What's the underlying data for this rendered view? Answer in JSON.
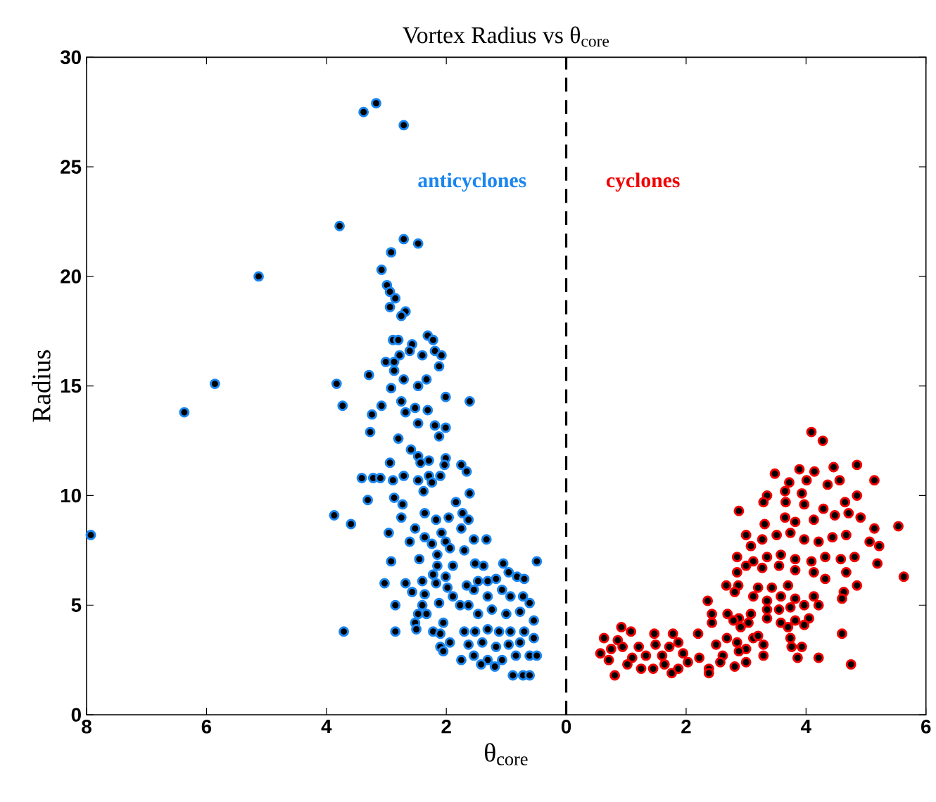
{
  "chart_data": {
    "type": "scatter",
    "title": "Vortex Radius vs θ$_{core}$",
    "xlabel": "θ$_{core}$",
    "ylabel": "Radius",
    "xlim": [
      -8,
      6
    ],
    "ylim": [
      0,
      30
    ],
    "xticks": [
      {
        "value": -8,
        "label": "8"
      },
      {
        "value": -6,
        "label": "6"
      },
      {
        "value": -4,
        "label": "4"
      },
      {
        "value": -2,
        "label": "2"
      },
      0,
      2,
      4,
      6
    ],
    "yticks": [
      0,
      5,
      10,
      15,
      20,
      25,
      30
    ],
    "marker": "circle",
    "grid": false,
    "ref_lines": [
      {
        "axis": "x",
        "value": 0,
        "color": "#000000",
        "line_style": "dashed"
      }
    ],
    "series": [
      {
        "name": "anticyclones",
        "color": "#1a86f0",
        "x": [
          -7.93,
          -6.37,
          -5.86,
          -5.13,
          -3.78,
          -3.38,
          -3.17,
          -2.71,
          -2.71,
          -2.47,
          -2.92,
          -3.08,
          -2.99,
          -2.94,
          -2.85,
          -2.94,
          -2.68,
          -2.75,
          -2.89,
          -2.8,
          -2.31,
          -2.22,
          -2.57,
          -2.61,
          -2.78,
          -2.19,
          -2.08,
          -2.4,
          -3.01,
          -2.87,
          -2.87,
          -2.12,
          -3.83,
          -3.29,
          -2.71,
          -2.33,
          -2.47,
          -3.73,
          -3.24,
          -3.08,
          -3.27,
          -2.92,
          -2.75,
          -2.68,
          -2.52,
          -2.31,
          -2.47,
          -2.01,
          -1.61,
          -2.19,
          -2.01,
          -2.12,
          -2.8,
          -2.59,
          -2.47,
          -2.01,
          -2.29,
          -2.03,
          -2.43,
          -2.94,
          -1.75,
          -1.66,
          -3.41,
          -3.22,
          -3.1,
          -2.89,
          -2.71,
          -2.47,
          -2.29,
          -2.1,
          -2.24,
          -2.38,
          -1.61,
          -3.31,
          -2.87,
          -2.73,
          -3.87,
          -3.59,
          -2.75,
          -2.36,
          -2.17,
          -1.96,
          -1.84,
          -1.73,
          -1.63,
          -2.96,
          -2.52,
          -2.36,
          -2.08,
          -1.75,
          -2.61,
          -2.24,
          -2.01,
          -1.54,
          -1.33,
          -2.15,
          -1.94,
          -1.7,
          -2.92,
          -2.45,
          -2.15,
          -1.89,
          -1.52,
          -1.38,
          -1.05,
          -0.49,
          -3.03,
          -2.68,
          -2.4,
          -2.22,
          -2.01,
          -2.57,
          -2.36,
          -2.17,
          -1.98,
          -1.66,
          -1.54,
          -2.85,
          -2.4,
          -2.12,
          -1.89,
          -1.77,
          -2.47,
          -2.33,
          -2.52,
          -2.5,
          -2.05,
          -3.71,
          -2.85,
          -2.22,
          -2.1,
          -2.1,
          -2.05,
          -1.94,
          -1.47,
          -1.31,
          -1.17,
          -0.96,
          -0.82,
          -0.7,
          -1.31,
          -1.07,
          -0.93,
          -0.72,
          -0.61,
          -1.63,
          -1.47,
          -1.24,
          -1.0,
          -0.77,
          -0.54,
          -1.7,
          -1.52,
          -1.31,
          -1.12,
          -0.93,
          -0.7,
          -1.63,
          -1.4,
          -1.17,
          -0.96,
          -0.77,
          -0.54,
          -1.75,
          -1.54,
          -1.31,
          -1.07,
          -0.84,
          -0.61,
          -0.49,
          -1.42,
          -1.19,
          -0.89,
          -0.72,
          -0.61
        ],
        "values": [
          8.2,
          13.8,
          15.1,
          20.0,
          22.3,
          27.5,
          27.9,
          26.9,
          21.7,
          21.5,
          21.1,
          20.3,
          19.6,
          19.3,
          19.0,
          18.6,
          18.4,
          18.2,
          17.1,
          17.1,
          17.3,
          17.1,
          16.9,
          16.6,
          16.4,
          16.6,
          16.4,
          16.4,
          16.1,
          16.1,
          15.7,
          15.9,
          15.1,
          15.5,
          15.3,
          15.3,
          15.0,
          14.1,
          13.7,
          14.1,
          12.9,
          14.9,
          14.3,
          13.8,
          14.0,
          13.9,
          13.3,
          14.5,
          14.3,
          13.2,
          13.1,
          12.7,
          12.6,
          12.1,
          11.8,
          11.7,
          11.6,
          11.4,
          11.5,
          11.5,
          11.4,
          11.1,
          10.8,
          10.8,
          10.8,
          10.7,
          10.9,
          10.7,
          10.9,
          10.9,
          10.6,
          10.2,
          10.1,
          9.8,
          9.9,
          9.6,
          9.1,
          8.7,
          9.0,
          9.2,
          8.9,
          9.0,
          9.7,
          9.2,
          8.9,
          8.3,
          8.5,
          8.1,
          8.3,
          8.5,
          7.9,
          7.8,
          7.9,
          8.0,
          8.0,
          7.3,
          7.6,
          7.5,
          7.0,
          7.1,
          6.8,
          6.8,
          6.9,
          6.8,
          6.9,
          7.0,
          6.0,
          6.0,
          6.1,
          6.4,
          6.3,
          5.6,
          5.5,
          6.0,
          5.8,
          5.9,
          5.7,
          5.0,
          5.0,
          5.1,
          5.4,
          5.0,
          4.6,
          4.6,
          4.2,
          3.9,
          4.2,
          3.8,
          3.8,
          3.8,
          3.7,
          3.1,
          2.9,
          3.3,
          6.1,
          6.1,
          6.2,
          6.5,
          6.3,
          6.2,
          5.4,
          5.7,
          5.4,
          5.4,
          5.1,
          5.0,
          4.6,
          4.8,
          4.6,
          4.7,
          4.3,
          3.8,
          3.8,
          3.9,
          3.8,
          3.8,
          3.8,
          3.2,
          3.3,
          3.1,
          3.2,
          3.3,
          3.5,
          2.5,
          2.7,
          2.5,
          2.5,
          2.7,
          2.7,
          2.7,
          2.3,
          2.2,
          1.8,
          1.8,
          1.8
        ]
      },
      {
        "name": "cyclones",
        "color": "#f00000",
        "x": [
          4.09,
          4.28,
          4.85,
          5.14,
          4.46,
          3.89,
          3.48,
          4.14,
          4.56,
          4.01,
          3.72,
          3.35,
          3.65,
          3.93,
          4.36,
          4.65,
          4.85,
          3.29,
          3.66,
          3.97,
          4.29,
          2.88,
          3.31,
          3.65,
          3.82,
          4.13,
          4.48,
          4.71,
          4.91,
          5.14,
          5.54,
          3.0,
          3.27,
          3.51,
          3.74,
          3.97,
          4.21,
          4.44,
          4.67,
          5.06,
          5.22,
          3.08,
          2.85,
          3.12,
          3.35,
          3.58,
          3.82,
          4.09,
          4.32,
          4.58,
          4.81,
          5.19,
          5.63,
          3.0,
          3.27,
          3.55,
          3.82,
          4.13,
          4.32,
          4.67,
          2.85,
          2.67,
          2.87,
          3.2,
          3.43,
          3.7,
          4.85,
          2.81,
          3.12,
          3.35,
          3.58,
          3.82,
          4.13,
          4.63,
          4.6,
          2.36,
          2.69,
          2.88,
          3.08,
          3.35,
          3.55,
          3.74,
          3.97,
          4.21,
          2.43,
          2.43,
          2.79,
          3.04,
          3.35,
          3.58,
          3.82,
          4.05,
          2.91,
          3.7,
          3.97,
          4.6,
          3.12,
          3.74,
          2.2,
          2.68,
          2.5,
          2.85,
          3.0,
          3.2,
          3.29,
          2.61,
          2.88,
          3.0,
          2.81,
          2.57,
          3.29,
          3.76,
          3.93,
          3.86,
          4.21,
          4.75,
          0.92,
          1.08,
          0.63,
          0.86,
          1.47,
          1.78,
          0.57,
          0.71,
          0.81,
          0.94,
          1.1,
          1.21,
          1.33,
          1.49,
          1.6,
          1.72,
          1.87,
          1.95,
          2.03,
          2.22,
          2.38,
          2.38,
          1.76,
          1.02,
          1.25,
          1.45,
          1.64,
          1.87,
          0.75
        ],
        "values": [
          12.9,
          12.5,
          11.4,
          10.7,
          11.3,
          11.2,
          11.0,
          11.1,
          10.7,
          10.7,
          10.6,
          10.0,
          10.2,
          10.1,
          10.5,
          9.7,
          10.0,
          9.7,
          9.7,
          9.6,
          9.4,
          9.3,
          8.7,
          9.0,
          8.8,
          8.9,
          9.1,
          9.2,
          9.0,
          8.5,
          8.6,
          8.2,
          8.0,
          8.2,
          8.3,
          8.0,
          7.9,
          8.1,
          8.2,
          7.9,
          7.7,
          7.7,
          7.2,
          7.0,
          7.2,
          7.3,
          7.1,
          7.0,
          7.2,
          7.1,
          7.2,
          6.9,
          6.3,
          6.8,
          6.7,
          6.8,
          6.6,
          6.5,
          6.2,
          6.5,
          6.5,
          5.9,
          5.9,
          5.8,
          5.8,
          5.9,
          5.9,
          5.6,
          5.4,
          5.2,
          5.4,
          5.3,
          5.4,
          5.6,
          5.3,
          5.2,
          4.6,
          4.4,
          4.6,
          4.8,
          4.8,
          4.9,
          5.0,
          5.0,
          4.6,
          4.2,
          4.3,
          4.2,
          4.4,
          4.2,
          4.3,
          4.4,
          4.0,
          4.0,
          4.1,
          3.7,
          3.5,
          3.5,
          3.7,
          3.5,
          3.2,
          3.3,
          3.0,
          3.6,
          3.2,
          2.7,
          2.9,
          2.4,
          2.2,
          2.4,
          2.7,
          3.1,
          3.1,
          2.6,
          2.6,
          2.3,
          4.0,
          3.8,
          3.5,
          3.4,
          3.7,
          3.7,
          2.8,
          2.5,
          1.8,
          3.1,
          2.6,
          3.1,
          2.7,
          3.2,
          2.7,
          3.1,
          3.3,
          2.8,
          2.4,
          2.6,
          2.1,
          1.9,
          1.9,
          2.3,
          2.1,
          2.1,
          2.3,
          2.1,
          3.0
        ]
      }
    ]
  }
}
